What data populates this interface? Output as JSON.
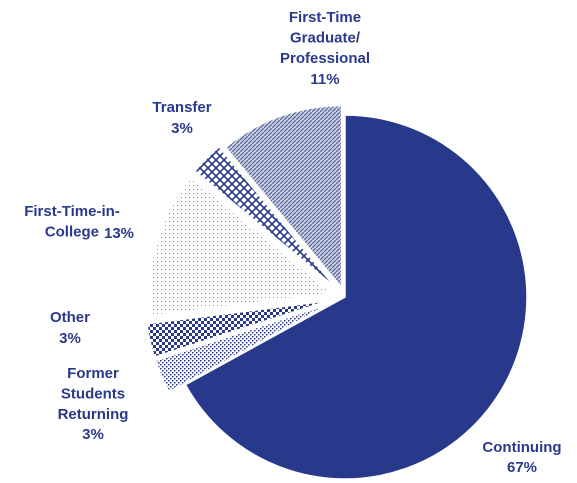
{
  "chart_data": {
    "type": "pie",
    "categories": [
      "Continuing",
      "Former\nStudents\nReturning",
      "Other",
      "First-Time-in-\nCollege",
      "Transfer",
      "First-Time\nGraduate/\nProfessional"
    ],
    "values": [
      67,
      3,
      3,
      13,
      3,
      11
    ],
    "value_labels": [
      "67%",
      "3%",
      "3%",
      "13%",
      "3%",
      "11%"
    ],
    "colors": [
      "#28388a",
      "#28388a",
      "#28388a",
      "#8a8a8a",
      "#28388a",
      "#5a6a9a"
    ],
    "patterns": [
      "solid",
      "diagonal-dots",
      "checker",
      "dots",
      "crosshatch",
      "hatch"
    ]
  }
}
